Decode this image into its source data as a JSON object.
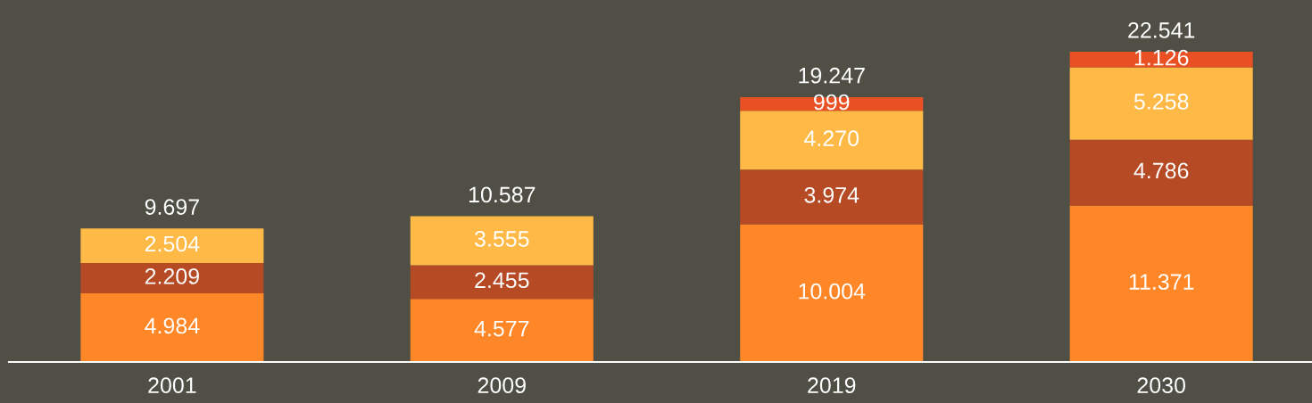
{
  "chart_data": {
    "type": "bar",
    "stacked": true,
    "categories": [
      "2001",
      "2009",
      "2019",
      "2030"
    ],
    "series": [
      {
        "color": "#ff8727",
        "values": [
          4984,
          4577,
          10004,
          11371
        ],
        "value_labels": [
          "4.984",
          "4.577",
          "10.004",
          "11.371"
        ]
      },
      {
        "color": "#b54a24",
        "values": [
          2209,
          2455,
          3974,
          4786
        ],
        "value_labels": [
          "2.209",
          "2.455",
          "3.974",
          "4.786"
        ]
      },
      {
        "color": "#ffb946",
        "values": [
          2504,
          3555,
          4270,
          5258
        ],
        "value_labels": [
          "2.504",
          "3.555",
          "4.270",
          "5.258"
        ]
      },
      {
        "color": "#e95125",
        "values": [
          null,
          null,
          999,
          1126
        ],
        "value_labels": [
          null,
          null,
          "999",
          "1.126"
        ]
      }
    ],
    "totals": [
      "9.697",
      "10.587",
      "19.247",
      "22.541"
    ],
    "grid": false,
    "legend": false
  }
}
